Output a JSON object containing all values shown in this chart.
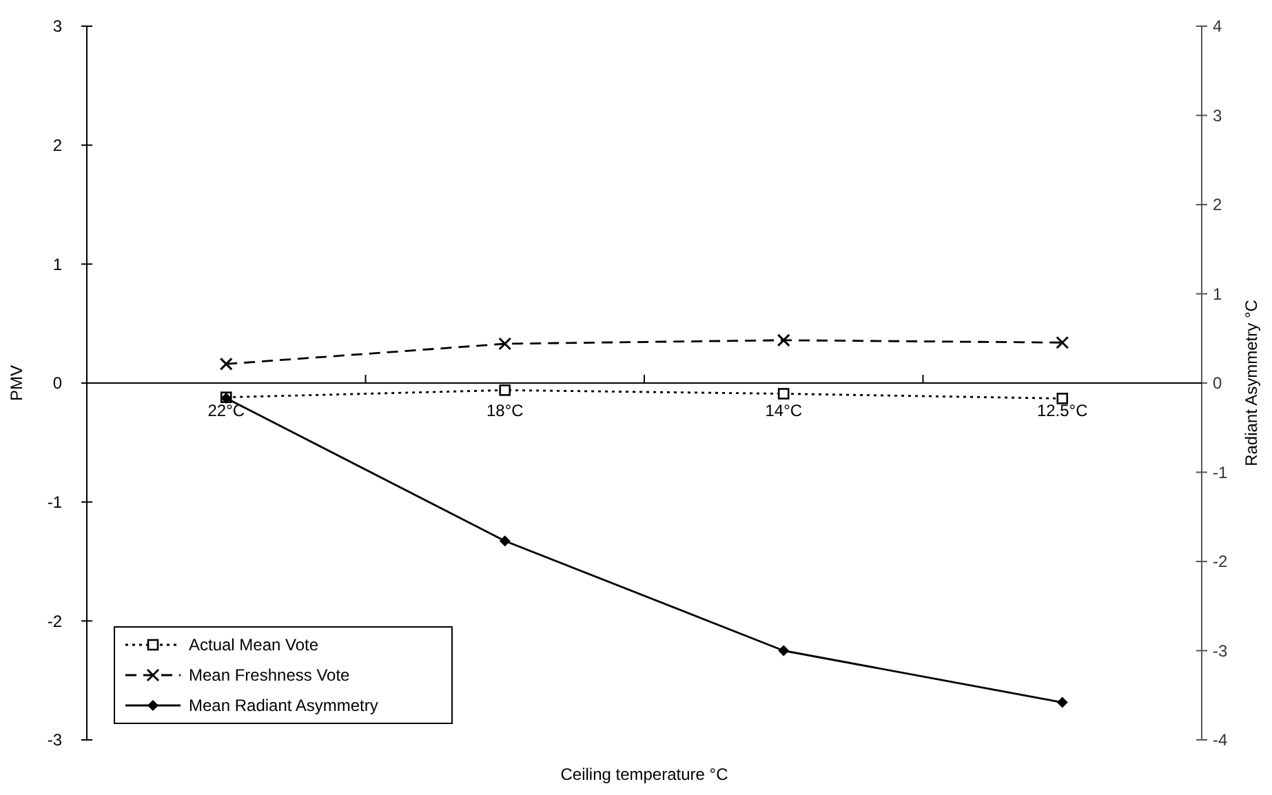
{
  "chart_data": {
    "type": "line",
    "xlabel": "Ceiling temperature °C",
    "ylabel": "PMV",
    "y2label": "Radiant Asymmetry °C",
    "categories": [
      "22°C",
      "18°C",
      "14°C",
      "12.5°C"
    ],
    "series": [
      {
        "name": "Actual Mean Vote",
        "color": "#000000",
        "values": [
          -0.12,
          -0.06,
          -0.09,
          -0.13
        ],
        "marker": "square",
        "line_style": "dotted"
      },
      {
        "name": "Mean Freshness Vote",
        "color": "#000000",
        "values": [
          0.16,
          0.33,
          0.36,
          0.34
        ],
        "marker": "cross",
        "line_style": "dashed"
      },
      {
        "name": "Mean Radiant Asymmetry",
        "color": "#000000",
        "values": [
          -0.17,
          -1.77,
          -3.0,
          -3.58
        ],
        "marker": "diamond",
        "line_style": "solid",
        "axis": "y2"
      }
    ],
    "ylim": [
      -3,
      3
    ],
    "yticks": [
      -3,
      -2,
      -1,
      0,
      1,
      2,
      3
    ],
    "y2lim": [
      -4,
      4
    ],
    "y2ticks": [
      -4,
      -3,
      -2,
      -1,
      0,
      1,
      2,
      3,
      4
    ],
    "grid": false,
    "legend": "bottom left"
  }
}
